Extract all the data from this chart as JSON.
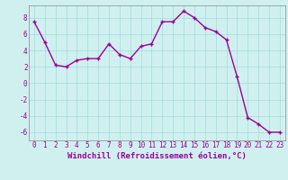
{
  "x": [
    0,
    1,
    2,
    3,
    4,
    5,
    6,
    7,
    8,
    9,
    10,
    11,
    12,
    13,
    14,
    15,
    16,
    17,
    18,
    19,
    20,
    21,
    22,
    23
  ],
  "y": [
    7.5,
    5.0,
    2.2,
    2.0,
    2.8,
    3.0,
    3.0,
    4.8,
    3.5,
    3.0,
    4.5,
    4.8,
    7.5,
    7.5,
    8.8,
    8.0,
    6.8,
    6.3,
    5.3,
    0.8,
    -4.2,
    -5.0,
    -6.0,
    -6.0
  ],
  "line_color": "#990099",
  "marker": "+",
  "marker_size": 3,
  "bg_color": "#d0f0f0",
  "grid_color": "#aadddd",
  "xlabel": "Windchill (Refroidissement éolien,°C)",
  "xlabel_color": "#990099",
  "xlabel_fontsize": 6.5,
  "tick_color": "#990099",
  "tick_fontsize": 5.5,
  "ylim": [
    -7,
    9.5
  ],
  "yticks": [
    -6,
    -4,
    -2,
    0,
    2,
    4,
    6,
    8
  ],
  "xticks": [
    0,
    1,
    2,
    3,
    4,
    5,
    6,
    7,
    8,
    9,
    10,
    11,
    12,
    13,
    14,
    15,
    16,
    17,
    18,
    19,
    20,
    21,
    22,
    23
  ],
  "line_width": 1.0
}
